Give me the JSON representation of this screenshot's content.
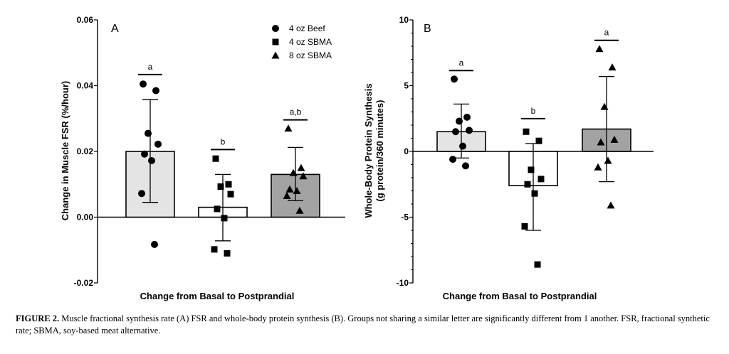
{
  "caption": {
    "label": "FIGURE 2.",
    "text": "Muscle fractional synthesis rate (A) FSR and whole-body protein synthesis (B). Groups not sharing a similar letter are significantly different from 1 another. FSR, fractional synthetic rate; SBMA, soy-based meat alternative."
  },
  "chart_data": [
    {
      "type": "bar",
      "panel_label": "A",
      "xlabel": "Change from Basal to Postprandial",
      "ylabel": "Change in Muscle FSR (%/hour)",
      "ylim": [
        -0.02,
        0.06
      ],
      "yticks": [
        "-0.02",
        "0.00",
        "0.02",
        "0.04",
        "0.06"
      ],
      "grid": false,
      "legend_placement": "top-right",
      "bar_colors": [
        "#e4e4e4",
        "#ffffff",
        "#a3a3a3"
      ],
      "series": [
        {
          "name": "4 oz Beef",
          "marker": "circle",
          "mean": 0.02,
          "sd_low": 0.0045,
          "sd_high": 0.0358,
          "letter": "a",
          "points": [
            0.0405,
            0.0385,
            0.0255,
            0.0222,
            0.0192,
            0.0172,
            0.0072,
            -0.0083
          ]
        },
        {
          "name": "4 oz SBMA",
          "marker": "square",
          "mean": 0.003,
          "sd_low": -0.0072,
          "sd_high": 0.013,
          "letter": "b",
          "points": [
            0.0178,
            0.01,
            0.0093,
            0.007,
            0.0025,
            -0.0003,
            -0.0098,
            -0.011
          ]
        },
        {
          "name": "8 oz SBMA",
          "marker": "triangle",
          "mean": 0.013,
          "sd_low": 0.005,
          "sd_high": 0.0212,
          "letter": "a,b",
          "points": [
            0.027,
            0.015,
            0.0135,
            0.0125,
            0.0085,
            0.008,
            0.0065,
            0.002
          ]
        }
      ]
    },
    {
      "type": "bar",
      "panel_label": "B",
      "xlabel": "Change from Basal to Postprandial",
      "ylabel": "Whole-Body Protein Synthesis",
      "ylabel2": "(g protein/360 minutes)",
      "ylim": [
        -10,
        10
      ],
      "yticks": [
        "-10",
        "-5",
        "0",
        "5",
        "10"
      ],
      "grid": false,
      "bar_colors": [
        "#e4e4e4",
        "#ffffff",
        "#a3a3a3"
      ],
      "series": [
        {
          "name": "4 oz Beef",
          "marker": "circle",
          "mean": 1.5,
          "sd_low": -0.5,
          "sd_high": 3.6,
          "letter": "a",
          "points": [
            5.5,
            2.6,
            2.3,
            1.6,
            1.5,
            0.4,
            -0.6,
            -1.1
          ]
        },
        {
          "name": "4 oz SBMA",
          "marker": "square",
          "mean": -2.6,
          "sd_low": -6.0,
          "sd_high": 0.6,
          "letter": "b",
          "points": [
            1.5,
            0.8,
            -1.4,
            -2.1,
            -2.5,
            -3.2,
            -5.7,
            -8.6
          ]
        },
        {
          "name": "8 oz SBMA",
          "marker": "triangle",
          "mean": 1.7,
          "sd_low": -2.3,
          "sd_high": 5.7,
          "letter": "a",
          "points": [
            7.8,
            6.4,
            3.4,
            0.9,
            0.7,
            -0.7,
            -1.2,
            -4.1
          ]
        }
      ]
    }
  ]
}
